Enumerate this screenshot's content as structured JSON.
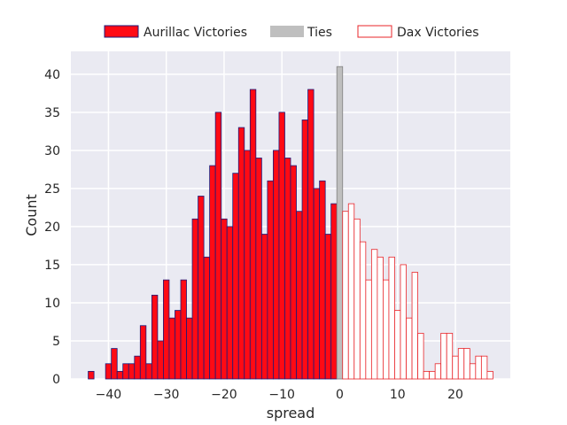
{
  "chart_data": {
    "type": "bar",
    "xlabel": "spread",
    "ylabel": "Count",
    "xlim": [
      -46.5,
      29.5
    ],
    "ylim": [
      0,
      43
    ],
    "xticks": [
      -40,
      -30,
      -20,
      -10,
      0,
      10,
      20
    ],
    "xtick_labels": [
      "−40",
      "−30",
      "−20",
      "−10",
      "0",
      "10",
      "20"
    ],
    "yticks": [
      0,
      5,
      10,
      15,
      20,
      25,
      30,
      35,
      40
    ],
    "ytick_labels": [
      "0",
      "5",
      "10",
      "15",
      "20",
      "25",
      "30",
      "35",
      "40"
    ],
    "grid": true,
    "legend_position": "top-center",
    "series": [
      {
        "name": "Aurillac Victories",
        "fill": "#ff0a14",
        "stroke": "#1a1a7a",
        "x": [
          -43,
          -42,
          -41,
          -40,
          -39,
          -38,
          -37,
          -36,
          -35,
          -34,
          -33,
          -32,
          -31,
          -30,
          -29,
          -28,
          -27,
          -26,
          -25,
          -24,
          -23,
          -22,
          -21,
          -20,
          -19,
          -18,
          -17,
          -16,
          -15,
          -14,
          -13,
          -12,
          -11,
          -10,
          -9,
          -8,
          -7,
          -6,
          -5,
          -4,
          -3,
          -2,
          -1
        ],
        "values": [
          1,
          0,
          0,
          2,
          4,
          1,
          2,
          2,
          3,
          7,
          2,
          11,
          5,
          13,
          8,
          9,
          13,
          8,
          21,
          24,
          16,
          28,
          35,
          21,
          20,
          27,
          33,
          30,
          38,
          29,
          19,
          26,
          30,
          35,
          29,
          28,
          22,
          34,
          38,
          25,
          26,
          19,
          23
        ]
      },
      {
        "name": "Ties",
        "fill": "#bfbfbf",
        "stroke": "#808080",
        "x": [
          0
        ],
        "values": [
          41
        ]
      },
      {
        "name": "Dax Victories",
        "fill": "#ffffff",
        "stroke": "#e8252a",
        "x": [
          1,
          2,
          3,
          4,
          5,
          6,
          7,
          8,
          9,
          10,
          11,
          12,
          13,
          14,
          15,
          16,
          17,
          18,
          19,
          20,
          21,
          22,
          23,
          24,
          25,
          26
        ],
        "values": [
          22,
          23,
          21,
          18,
          13,
          17,
          16,
          13,
          16,
          9,
          15,
          8,
          14,
          6,
          1,
          1,
          2,
          6,
          6,
          3,
          4,
          4,
          2,
          3,
          3,
          1
        ]
      }
    ]
  }
}
